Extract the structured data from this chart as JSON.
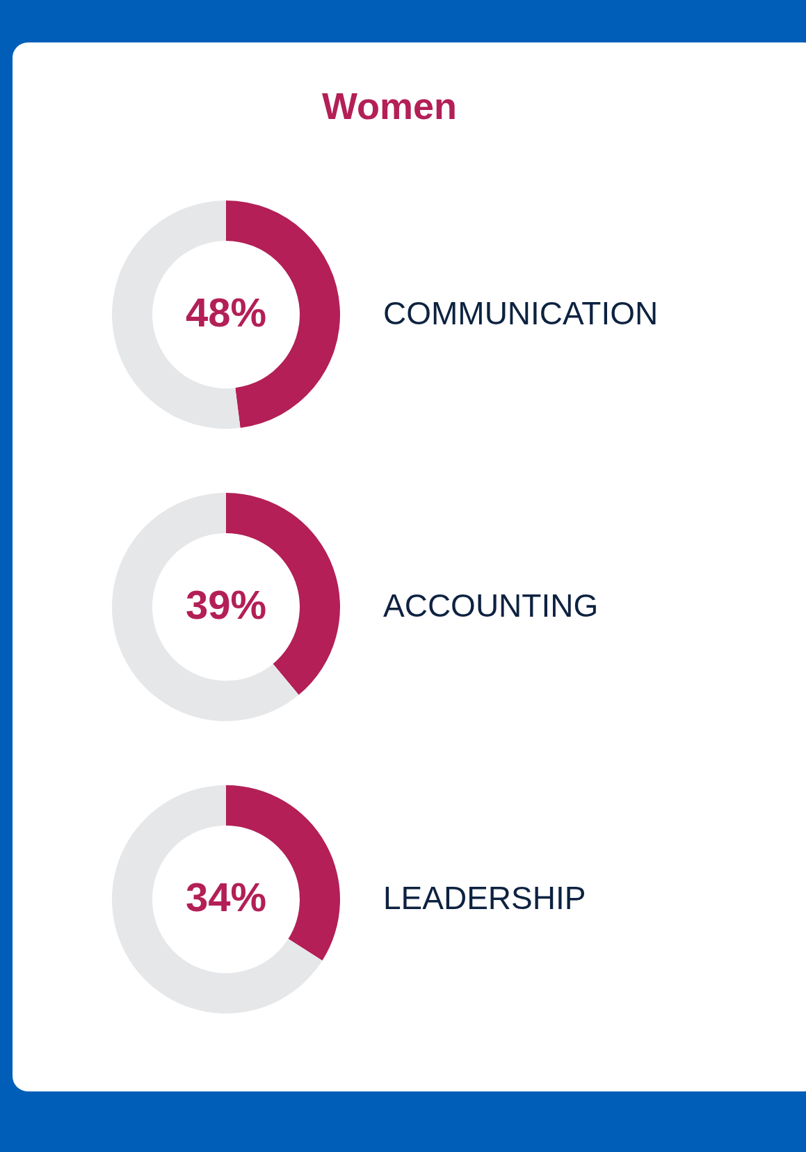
{
  "chart_data": [
    {
      "type": "donut",
      "title": "Women",
      "categories": [
        "COMMUNICATION",
        null
      ],
      "values": [
        48,
        52
      ],
      "colors": [
        "#b31f56",
        "#e6e7e9"
      ],
      "value_labels": [
        "48%",
        null
      ]
    },
    {
      "type": "donut",
      "categories": [
        "ACCOUNTING",
        null
      ],
      "values": [
        39,
        61
      ],
      "colors": [
        "#b31f56",
        "#e6e7e9"
      ],
      "value_labels": [
        "39%",
        null
      ]
    },
    {
      "type": "donut",
      "categories": [
        "LEADERSHIP",
        null
      ],
      "values": [
        34,
        66
      ],
      "colors": [
        "#b31f56",
        "#e6e7e9"
      ],
      "value_labels": [
        "34%",
        null
      ]
    }
  ]
}
